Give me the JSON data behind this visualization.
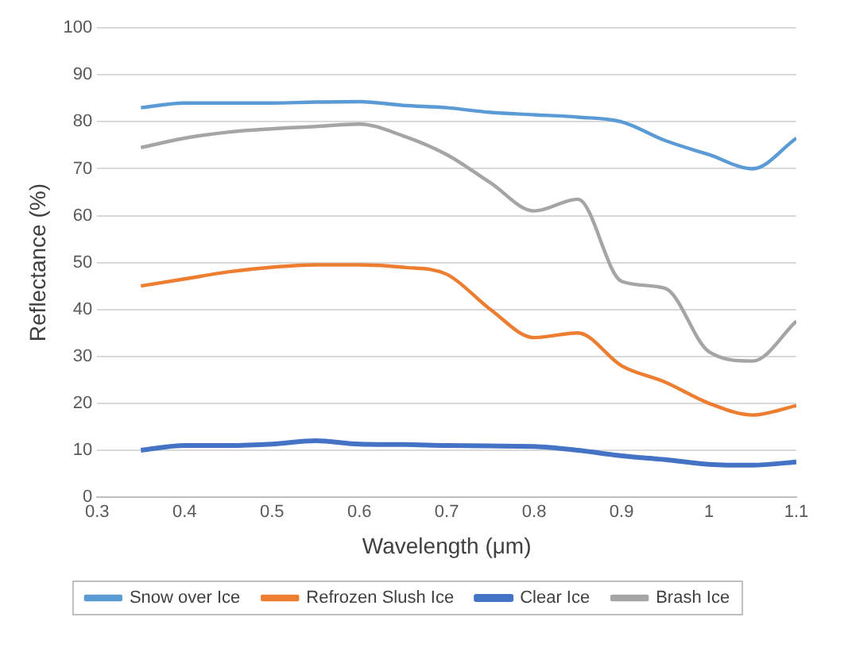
{
  "chart_data": {
    "type": "line",
    "xlabel": "Wavelength (μm)",
    "ylabel": "Reflectance (%)",
    "xlim": [
      0.3,
      1.1
    ],
    "xticks": [
      0.3,
      0.4,
      0.5,
      0.6,
      0.7,
      0.8,
      0.9,
      1,
      1.1
    ],
    "ylim": [
      0,
      100
    ],
    "yticks": [
      0,
      10,
      20,
      30,
      40,
      50,
      60,
      70,
      80,
      90,
      100
    ],
    "grid": "y",
    "legend": "bottom",
    "marker": "none",
    "x": [
      0.35,
      0.4,
      0.45,
      0.5,
      0.55,
      0.6,
      0.65,
      0.7,
      0.75,
      0.8,
      0.85,
      0.9,
      0.95,
      1,
      1.05,
      1.1
    ],
    "series": [
      {
        "name": "Snow over Ice",
        "color": "#5b9bd5",
        "values": [
          83,
          84,
          84,
          84,
          84.2,
          84.3,
          83.5,
          83,
          82,
          81.5,
          81,
          80,
          76,
          73,
          70,
          76.5
        ]
      },
      {
        "name": "Refrozen Slush Ice",
        "color": "#ed7d31",
        "values": [
          45,
          46.5,
          48,
          49,
          49.5,
          49.5,
          49,
          47.5,
          40,
          34,
          35,
          28,
          24.5,
          20,
          17.5,
          19.5
        ]
      },
      {
        "name": "Clear Ice",
        "color": "#4472c4",
        "values": [
          10,
          11,
          11,
          11.3,
          12,
          11.3,
          11.2,
          11,
          10.9,
          10.8,
          10,
          8.8,
          8,
          7,
          6.8,
          7.5
        ]
      },
      {
        "name": "Brash Ice",
        "color": "#a5a5a5",
        "values": [
          74.5,
          76.5,
          77.8,
          78.5,
          79,
          79.5,
          77,
          73,
          67,
          61,
          63.5,
          46,
          44.5,
          31,
          29,
          37.5
        ]
      }
    ]
  }
}
